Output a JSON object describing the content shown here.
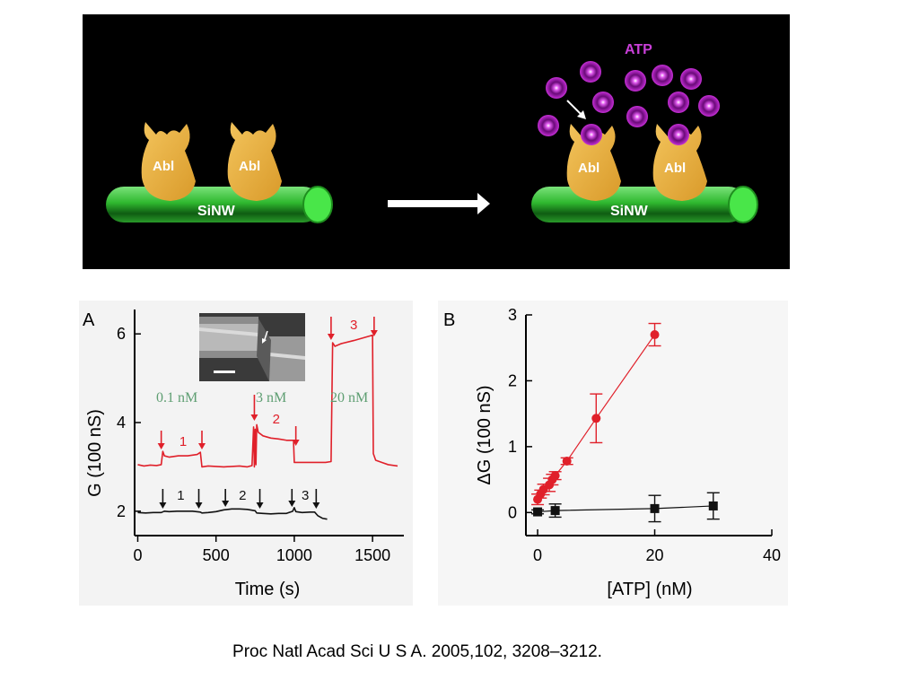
{
  "schematic": {
    "protein_label": "Abl",
    "nanowire_label": "SiNW",
    "molecule_label": "ATP"
  },
  "citation": "Proc Natl Acad Sci U S A. 2005,102, 3208–3212.",
  "colors": {
    "nanowire": "#35c335",
    "protein": "#e4ac3c",
    "atp": "#b51fc6",
    "red_series": "#e0202a",
    "black_series": "#111111",
    "label_green": "#5e9e72"
  },
  "chart_data": [
    {
      "type": "line",
      "panel_label": "A",
      "xlabel": "Time (s)",
      "ylabel": "G (100 nS)",
      "xlim": [
        -20,
        1700
      ],
      "ylim": [
        1.45,
        6.55
      ],
      "xticks": [
        0,
        500,
        1000,
        1500
      ],
      "yticks": [
        2,
        4,
        6
      ],
      "inset": "SEM image of nanowire device with arrow",
      "concentration_labels": [
        "0.1 nM",
        "3 nM",
        "20 nM"
      ],
      "series": [
        {
          "color": "red",
          "x": [
            0,
            40,
            80,
            120,
            150,
            160,
            170,
            200,
            260,
            320,
            380,
            400,
            410,
            450,
            550,
            650,
            700,
            730,
            740,
            745,
            750,
            755,
            760,
            770,
            800,
            850,
            900,
            950,
            995,
            1000,
            1020,
            1100,
            1200,
            1235,
            1245,
            1260,
            1300,
            1380,
            1450,
            1500,
            1505,
            1520,
            1560,
            1600,
            1660
          ],
          "values": [
            3.05,
            3.02,
            3.04,
            3.03,
            3.05,
            3.35,
            3.25,
            3.22,
            3.25,
            3.25,
            3.28,
            3.33,
            3.0,
            3.02,
            3.0,
            3.02,
            3.0,
            3.03,
            3.9,
            3.0,
            3.85,
            3.05,
            3.95,
            3.78,
            3.7,
            3.65,
            3.63,
            3.6,
            3.6,
            3.1,
            3.1,
            3.1,
            3.1,
            3.12,
            5.8,
            5.72,
            5.78,
            5.85,
            5.92,
            5.97,
            3.3,
            3.15,
            3.1,
            3.05,
            3.02
          ]
        },
        {
          "color": "black",
          "x": [
            0,
            50,
            100,
            150,
            170,
            200,
            250,
            300,
            350,
            400,
            410,
            450,
            500,
            550,
            600,
            650,
            700,
            750,
            760,
            800,
            850,
            900,
            950,
            990,
            1000,
            1010,
            1050,
            1100,
            1130,
            1150,
            1180,
            1210
          ],
          "values": [
            1.97,
            1.96,
            1.97,
            1.97,
            2.0,
            1.99,
            2.0,
            2.0,
            2.0,
            1.98,
            1.96,
            1.97,
            1.99,
            2.03,
            2.05,
            2.05,
            2.04,
            2.01,
            1.96,
            1.95,
            1.94,
            1.95,
            1.95,
            2.0,
            2.08,
            1.99,
            1.97,
            1.98,
            1.98,
            1.9,
            1.84,
            1.82
          ]
        }
      ],
      "red_markers": [
        "1",
        "2",
        "3"
      ],
      "black_markers": [
        "1",
        "2",
        "3"
      ]
    },
    {
      "type": "scatter",
      "panel_label": "B",
      "xlabel": "[ATP] (nM)",
      "ylabel": "ΔG (100 nS)",
      "xlim": [
        -2,
        40
      ],
      "ylim": [
        -0.35,
        3
      ],
      "xticks": [
        0,
        20,
        40
      ],
      "yticks": [
        0,
        1,
        2,
        3
      ],
      "series": [
        {
          "color": "red",
          "marker": "circle",
          "x": [
            0,
            0.5,
            1,
            2,
            2.5,
            3,
            5,
            10,
            20
          ],
          "values": [
            0.2,
            0.28,
            0.35,
            0.42,
            0.5,
            0.56,
            0.78,
            1.43,
            2.7
          ],
          "errors": [
            0.08,
            0.06,
            0.08,
            0.1,
            0.08,
            0.06,
            0.05,
            0.37,
            0.17
          ]
        },
        {
          "color": "black",
          "marker": "square",
          "x": [
            0,
            3,
            20,
            30
          ],
          "values": [
            0.01,
            0.03,
            0.06,
            0.1
          ],
          "errors": [
            0.03,
            0.1,
            0.2,
            0.2
          ]
        }
      ]
    }
  ]
}
